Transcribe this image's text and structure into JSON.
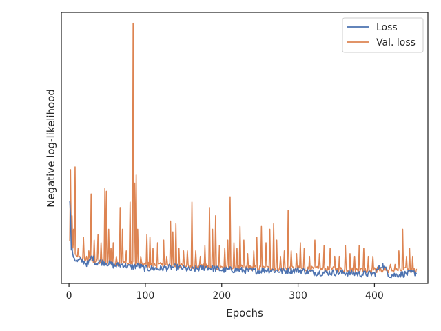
{
  "chart_data": {
    "type": "line",
    "xlabel": "Epochs",
    "ylabel": "Negative log-likelihood",
    "xlim": [
      -10,
      470
    ],
    "ylim": [
      0,
      1.0
    ],
    "x_ticks": [
      0,
      100,
      200,
      300,
      400
    ],
    "y_ticks_shown": false,
    "grid": false,
    "legend_position": "top-right",
    "series": [
      {
        "name": "Loss",
        "color": "#4c72b0",
        "start": 1,
        "step": 1,
        "anchors": [
          [
            1,
            0.31
          ],
          [
            2,
            0.24
          ],
          [
            3,
            0.13
          ],
          [
            5,
            0.11
          ],
          [
            7,
            0.095
          ],
          [
            10,
            0.08
          ],
          [
            15,
            0.085
          ],
          [
            20,
            0.08
          ],
          [
            25,
            0.07
          ],
          [
            30,
            0.1
          ],
          [
            35,
            0.075
          ],
          [
            40,
            0.08
          ],
          [
            50,
            0.075
          ],
          [
            60,
            0.065
          ],
          [
            70,
            0.07
          ],
          [
            80,
            0.06
          ],
          [
            90,
            0.065
          ],
          [
            100,
            0.055
          ],
          [
            120,
            0.055
          ],
          [
            140,
            0.06
          ],
          [
            160,
            0.05
          ],
          [
            180,
            0.06
          ],
          [
            200,
            0.05
          ],
          [
            220,
            0.05
          ],
          [
            240,
            0.045
          ],
          [
            260,
            0.05
          ],
          [
            280,
            0.045
          ],
          [
            300,
            0.05
          ],
          [
            320,
            0.04
          ],
          [
            340,
            0.04
          ],
          [
            360,
            0.04
          ],
          [
            380,
            0.035
          ],
          [
            400,
            0.035
          ],
          [
            410,
            0.07
          ],
          [
            420,
            0.03
          ],
          [
            440,
            0.035
          ],
          [
            455,
            0.04
          ]
        ],
        "noise": 0.012
      },
      {
        "name": "Val. loss",
        "color": "#dd8452",
        "start": 1,
        "step": 1,
        "baseline": [
          [
            1,
            0.15
          ],
          [
            10,
            0.09
          ],
          [
            40,
            0.075
          ],
          [
            100,
            0.065
          ],
          [
            200,
            0.055
          ],
          [
            300,
            0.05
          ],
          [
            400,
            0.045
          ],
          [
            455,
            0.045
          ]
        ],
        "noise": 0.02,
        "spikes": [
          [
            2,
            0.42
          ],
          [
            4,
            0.25
          ],
          [
            6,
            0.2
          ],
          [
            8,
            0.43
          ],
          [
            12,
            0.13
          ],
          [
            14,
            0.1
          ],
          [
            19,
            0.17
          ],
          [
            23,
            0.1
          ],
          [
            26,
            0.12
          ],
          [
            29,
            0.33
          ],
          [
            33,
            0.16
          ],
          [
            38,
            0.18
          ],
          [
            42,
            0.15
          ],
          [
            47,
            0.35
          ],
          [
            49,
            0.34
          ],
          [
            52,
            0.2
          ],
          [
            55,
            0.13
          ],
          [
            58,
            0.15
          ],
          [
            62,
            0.1
          ],
          [
            67,
            0.28
          ],
          [
            70,
            0.2
          ],
          [
            75,
            0.12
          ],
          [
            80,
            0.3
          ],
          [
            84,
            0.96
          ],
          [
            86,
            0.37
          ],
          [
            88,
            0.4
          ],
          [
            90,
            0.2
          ],
          [
            94,
            0.1
          ],
          [
            102,
            0.18
          ],
          [
            106,
            0.17
          ],
          [
            110,
            0.13
          ],
          [
            116,
            0.15
          ],
          [
            124,
            0.16
          ],
          [
            128,
            0.1
          ],
          [
            133,
            0.23
          ],
          [
            136,
            0.19
          ],
          [
            140,
            0.22
          ],
          [
            144,
            0.13
          ],
          [
            150,
            0.12
          ],
          [
            155,
            0.12
          ],
          [
            161,
            0.3
          ],
          [
            166,
            0.12
          ],
          [
            172,
            0.1
          ],
          [
            178,
            0.14
          ],
          [
            184,
            0.28
          ],
          [
            188,
            0.2
          ],
          [
            192,
            0.25
          ],
          [
            197,
            0.14
          ],
          [
            204,
            0.13
          ],
          [
            208,
            0.16
          ],
          [
            211,
            0.32
          ],
          [
            216,
            0.15
          ],
          [
            220,
            0.13
          ],
          [
            224,
            0.21
          ],
          [
            229,
            0.16
          ],
          [
            234,
            0.11
          ],
          [
            242,
            0.12
          ],
          [
            246,
            0.17
          ],
          [
            252,
            0.21
          ],
          [
            258,
            0.15
          ],
          [
            263,
            0.2
          ],
          [
            268,
            0.22
          ],
          [
            272,
            0.16
          ],
          [
            277,
            0.1
          ],
          [
            282,
            0.12
          ],
          [
            287,
            0.27
          ],
          [
            291,
            0.12
          ],
          [
            298,
            0.11
          ],
          [
            303,
            0.15
          ],
          [
            308,
            0.13
          ],
          [
            315,
            0.1
          ],
          [
            322,
            0.16
          ],
          [
            328,
            0.11
          ],
          [
            334,
            0.14
          ],
          [
            342,
            0.13
          ],
          [
            348,
            0.1
          ],
          [
            354,
            0.1
          ],
          [
            362,
            0.14
          ],
          [
            368,
            0.11
          ],
          [
            374,
            0.1
          ],
          [
            380,
            0.14
          ],
          [
            386,
            0.13
          ],
          [
            392,
            0.1
          ],
          [
            398,
            0.1
          ],
          [
            404,
            0.06
          ],
          [
            414,
            0.06
          ],
          [
            421,
            0.07
          ],
          [
            427,
            0.07
          ],
          [
            432,
            0.12
          ],
          [
            437,
            0.2
          ],
          [
            442,
            0.1
          ],
          [
            446,
            0.13
          ],
          [
            450,
            0.1
          ]
        ]
      }
    ]
  }
}
